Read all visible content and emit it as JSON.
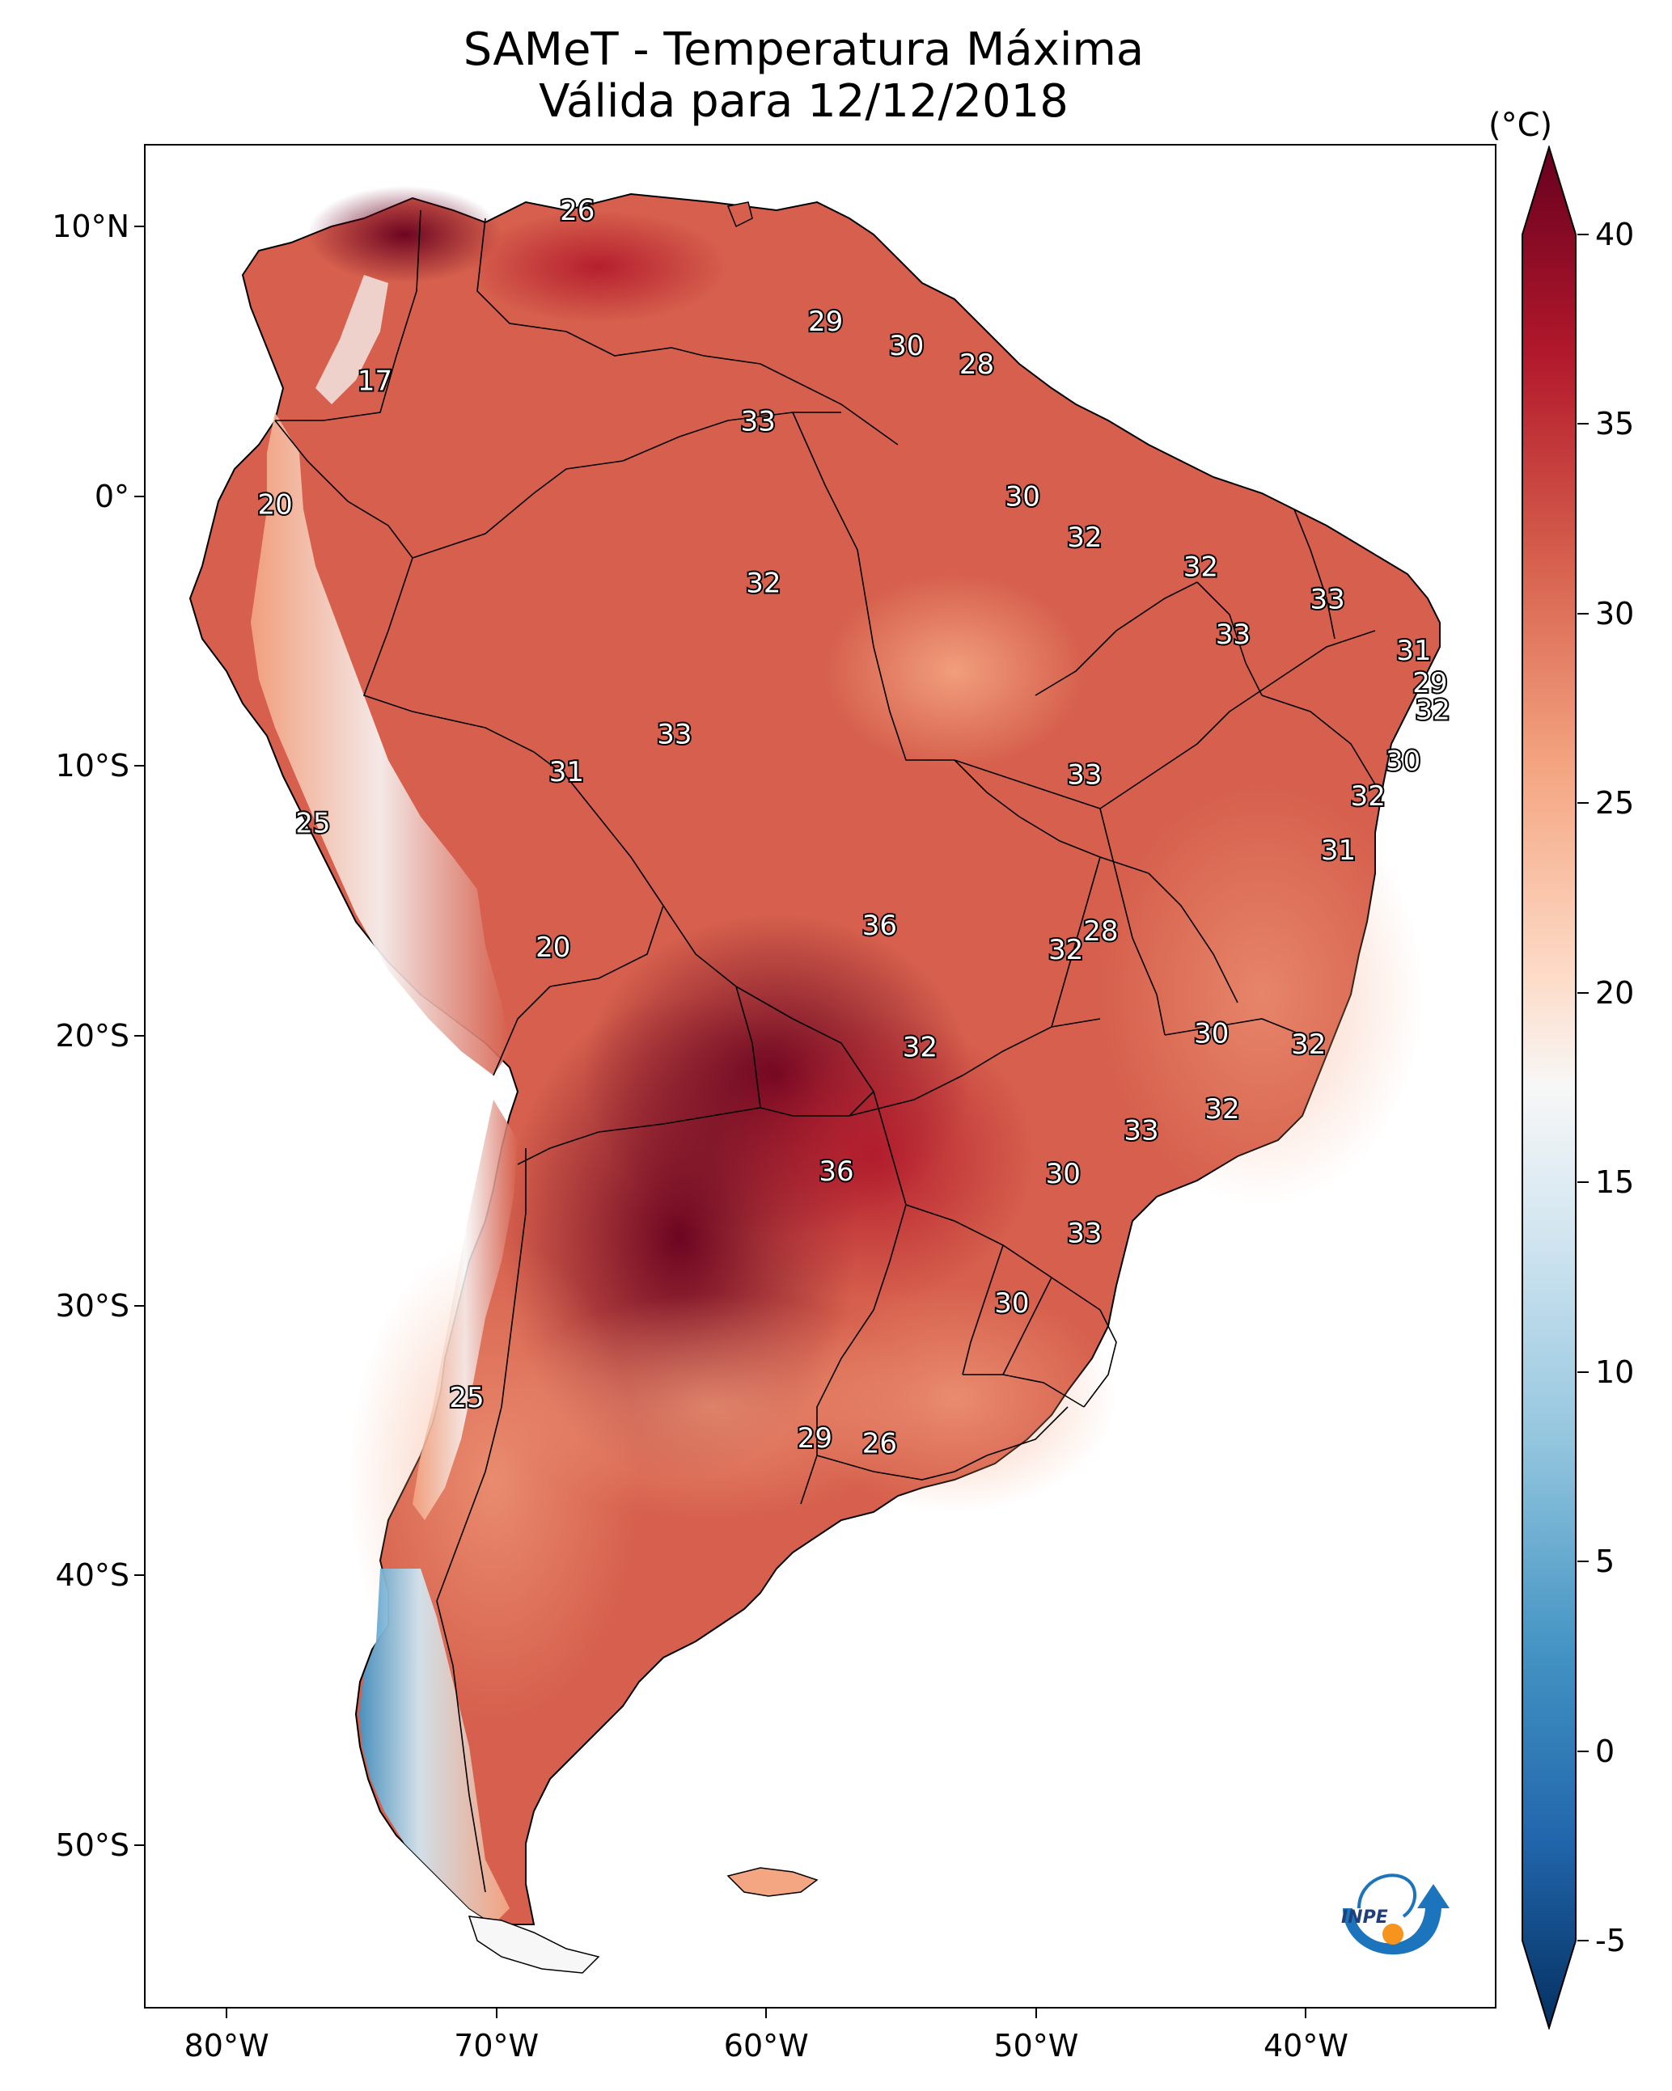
{
  "title": {
    "line1": "SAMeT - Temperatura Máxima",
    "line2": "Válida para 12/12/2018"
  },
  "axes": {
    "lat_labels": [
      {
        "text": "10°N",
        "lat": 10
      },
      {
        "text": "0°",
        "lat": 0
      },
      {
        "text": "10°S",
        "lat": -10
      },
      {
        "text": "20°S",
        "lat": -20
      },
      {
        "text": "30°S",
        "lat": -30
      },
      {
        "text": "40°S",
        "lat": -40
      },
      {
        "text": "50°S",
        "lat": -50
      }
    ],
    "lon_labels": [
      {
        "text": "80°W",
        "lon": -80
      },
      {
        "text": "70°W",
        "lon": -70
      },
      {
        "text": "60°W",
        "lon": -60
      },
      {
        "text": "50°W",
        "lon": -50
      },
      {
        "text": "40°W",
        "lon": -40
      }
    ],
    "lon_range": [
      -83,
      -33
    ],
    "lat_range": [
      -56,
      13
    ]
  },
  "colorbar": {
    "unit": "(°C)",
    "ticks": [
      "40",
      "35",
      "30",
      "25",
      "20",
      "15",
      "10",
      "5",
      "0",
      "-5"
    ],
    "range": [
      -5,
      40
    ],
    "colormap": "RdBu_r",
    "extend": "both",
    "colors": {
      "max": "#67001f",
      "high": "#b2182b",
      "warm": "#d6604d",
      "mild": "#f4a582",
      "neutral": "#f7f7f7",
      "cool": "#92c5de",
      "cold": "#2166ac",
      "min": "#053061"
    }
  },
  "contour_labels": [
    {
      "text": "26",
      "lon": -67,
      "lat": 10.6
    },
    {
      "text": "17",
      "lon": -74.5,
      "lat": 4.3
    },
    {
      "text": "29",
      "lon": -57.8,
      "lat": 6.5
    },
    {
      "text": "30",
      "lon": -54.8,
      "lat": 5.6
    },
    {
      "text": "28",
      "lon": -52.2,
      "lat": 4.9
    },
    {
      "text": "33",
      "lon": -60.3,
      "lat": 2.8
    },
    {
      "text": "20",
      "lon": -78.2,
      "lat": -0.3
    },
    {
      "text": "30",
      "lon": -50.5,
      "lat": 0
    },
    {
      "text": "32",
      "lon": -48.2,
      "lat": -1.5
    },
    {
      "text": "32",
      "lon": -43.9,
      "lat": -2.6
    },
    {
      "text": "32",
      "lon": -60.1,
      "lat": -3.2
    },
    {
      "text": "33",
      "lon": -39.2,
      "lat": -3.8
    },
    {
      "text": "33",
      "lon": -42.7,
      "lat": -5.1
    },
    {
      "text": "31",
      "lon": -36,
      "lat": -5.7
    },
    {
      "text": "29",
      "lon": -35.4,
      "lat": -6.9
    },
    {
      "text": "32",
      "lon": -35.3,
      "lat": -7.9
    },
    {
      "text": "33",
      "lon": -63.4,
      "lat": -8.8
    },
    {
      "text": "31",
      "lon": -67.4,
      "lat": -10.2
    },
    {
      "text": "33",
      "lon": -48.2,
      "lat": -10.3
    },
    {
      "text": "30",
      "lon": -36.4,
      "lat": -9.8
    },
    {
      "text": "32",
      "lon": -37.7,
      "lat": -11.1
    },
    {
      "text": "25",
      "lon": -76.8,
      "lat": -12.1
    },
    {
      "text": "31",
      "lon": -38.8,
      "lat": -13.1
    },
    {
      "text": "36",
      "lon": -55.8,
      "lat": -15.9
    },
    {
      "text": "28",
      "lon": -47.6,
      "lat": -16.1
    },
    {
      "text": "32",
      "lon": -48.9,
      "lat": -16.8
    },
    {
      "text": "20",
      "lon": -67.9,
      "lat": -16.7
    },
    {
      "text": "30",
      "lon": -43.5,
      "lat": -19.9
    },
    {
      "text": "32",
      "lon": -54.3,
      "lat": -20.4
    },
    {
      "text": "32",
      "lon": -39.9,
      "lat": -20.3
    },
    {
      "text": "32",
      "lon": -43.1,
      "lat": -22.7
    },
    {
      "text": "33",
      "lon": -46.1,
      "lat": -23.5
    },
    {
      "text": "36",
      "lon": -57.4,
      "lat": -25
    },
    {
      "text": "30",
      "lon": -49,
      "lat": -25.1
    },
    {
      "text": "33",
      "lon": -48.2,
      "lat": -27.3
    },
    {
      "text": "30",
      "lon": -50.9,
      "lat": -29.9
    },
    {
      "text": "25",
      "lon": -71.1,
      "lat": -33.4
    },
    {
      "text": "29",
      "lon": -58.2,
      "lat": -34.9
    },
    {
      "text": "26",
      "lon": -55.8,
      "lat": -35.1
    }
  ],
  "logo": {
    "text": "INPE",
    "colors": {
      "arrow": "#1c75bc",
      "dot": "#f7941d"
    }
  }
}
